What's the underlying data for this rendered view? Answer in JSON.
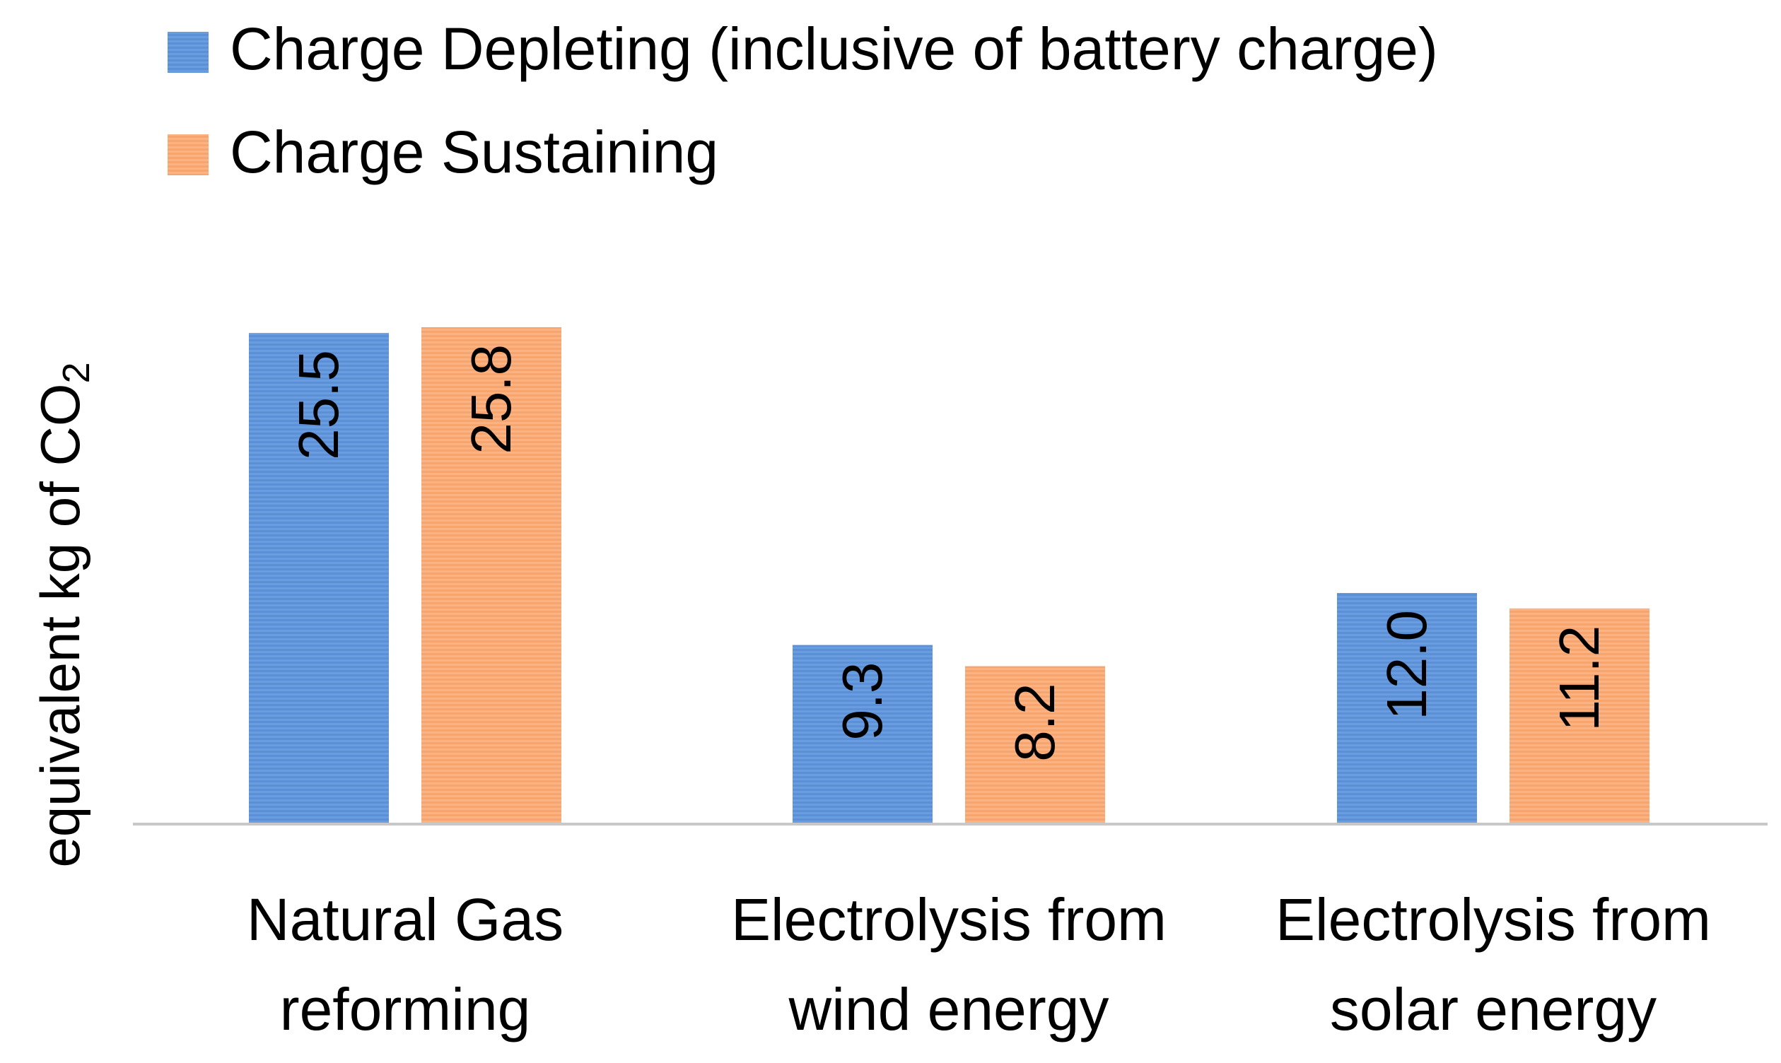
{
  "chart_data": {
    "type": "bar",
    "title": "",
    "xlabel": "",
    "ylabel": "equivalent kg of CO",
    "ylabel_subscript": "2",
    "categories": [
      [
        "Natural Gas",
        "reforming"
      ],
      [
        "Electrolysis from",
        "wind energy"
      ],
      [
        "Electrolysis from",
        "solar energy"
      ]
    ],
    "series": [
      {
        "name": "Charge Depleting (inclusive of battery charge)",
        "color": "#5b8fd6",
        "values": [
          25.5,
          9.3,
          12.0
        ],
        "labels": [
          "25.5",
          "9.3",
          "12.0"
        ]
      },
      {
        "name": "Charge Sustaining",
        "color": "#f6a56f",
        "values": [
          25.8,
          8.2,
          11.2
        ],
        "labels": [
          "25.8",
          "8.2",
          "11.2"
        ]
      }
    ],
    "ylim": [
      0,
      30
    ],
    "grid": false,
    "legend_position": "top-left",
    "axis_color": "#c8c8c8"
  }
}
